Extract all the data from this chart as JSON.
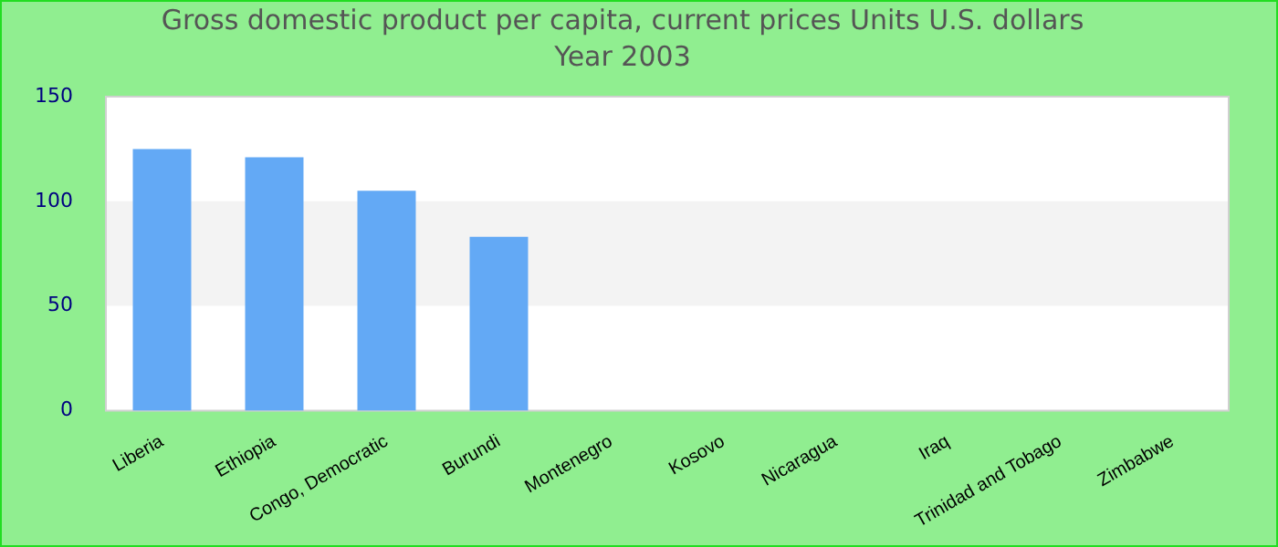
{
  "chart_data": {
    "type": "bar",
    "title": "Gross domestic product per capita, current prices Units U.S. dollars",
    "subtitle": "Year 2003",
    "categories": [
      "Liberia",
      "Ethiopia",
      "Congo, Democratic",
      "Burundi",
      "Montenegro",
      "Kosovo",
      "Nicaragua",
      "Iraq",
      "Trinidad and Tobago",
      "Zimbabwe"
    ],
    "values": [
      125,
      121,
      105,
      83,
      null,
      null,
      null,
      null,
      null,
      null
    ],
    "color": "#63a9f5",
    "ylim": [
      0,
      150
    ],
    "yticks": [
      0,
      50,
      100,
      150
    ],
    "bands": [
      {
        "axis": "y",
        "from": 50,
        "to": 100,
        "color": "#f3f3f3"
      }
    ]
  }
}
